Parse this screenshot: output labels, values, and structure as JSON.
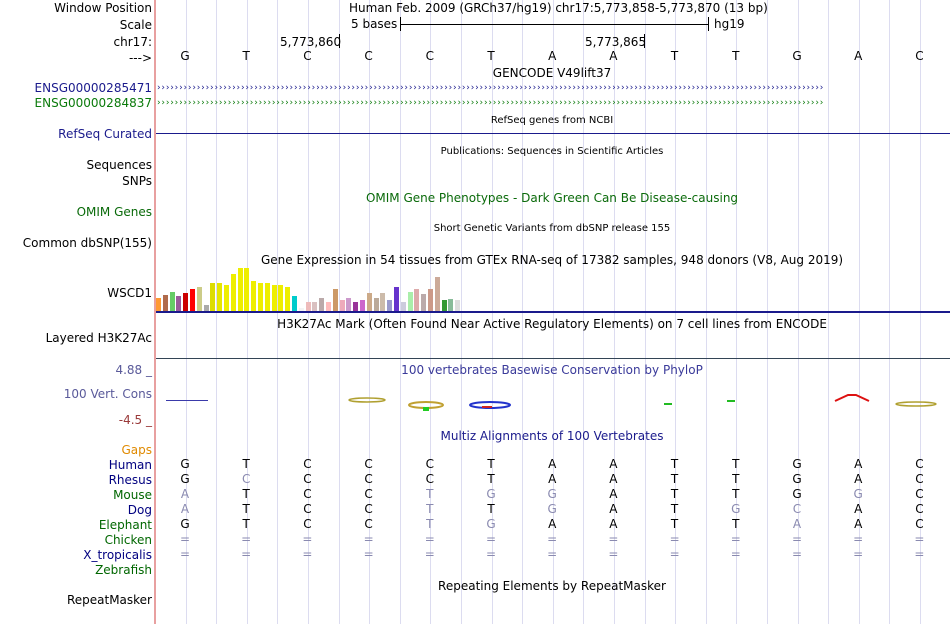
{
  "header": {
    "window_position_label": "Window Position",
    "window_position_value": "Human Feb. 2009 (GRCh37/hg19)   chr17:5,773,858-5,773,870 (13 bp)",
    "scale_label": "Scale",
    "scale_value": "5 bases",
    "scale_db": "hg19",
    "chrom_label": "chr17:",
    "pos1": "5,773,860",
    "pos2": "5,773,865",
    "strand_label": "--->"
  },
  "sequence": [
    "G",
    "T",
    "C",
    "C",
    "C",
    "T",
    "A",
    "A",
    "T",
    "T",
    "G",
    "A",
    "C"
  ],
  "tracks": {
    "gencode_title": "GENCODE V49lift37",
    "gene1": "ENSG00000285471",
    "gene2": "ENSG00000284837",
    "gene_arrows": "›››››››››››››››››››››››››››››››››››››››››››››››››››››››››››››››››››››››››››››››››››››››››››››››››››››››››››››››››››››››››››››››››››››››››››››››››››››››",
    "refseq_title": "RefSeq genes from NCBI",
    "refseq_label": "RefSeq Curated",
    "publications_title": "Publications: Sequences in Scientific Articles",
    "sequences_label": "Sequences",
    "snps_label": "SNPs",
    "omim_title": "OMIM Gene Phenotypes - Dark Green Can Be Disease-causing",
    "omim_label": "OMIM Genes",
    "dbsnp_title": "Short Genetic Variants from dbSNP release 155",
    "dbsnp_label": "Common dbSNP(155)",
    "gtex_title": "Gene Expression in 54 tissues from GTEx RNA-seq of 17382 samples, 948 donors (V8, Aug 2019)",
    "gtex_label": "WSCD1",
    "h3k27ac_title": "H3K27Ac Mark (Often Found Near Active Regulatory Elements) on 7 cell lines from ENCODE",
    "h3k27ac_label": "Layered H3K27Ac",
    "cons_max": "4.88 _",
    "cons_title": "100 vertebrates Basewise Conservation by PhyloP",
    "cons_label": "100 Vert. Cons",
    "cons_min": "-4.5 _",
    "multiz_title": "Multiz Alignments of 100 Vertebrates",
    "repeat_title": "Repeating Elements by RepeatMasker",
    "repeat_label": "RepeatMasker"
  },
  "gtex_values": [
    0.3,
    0.38,
    0.45,
    0.35,
    0.42,
    0.52,
    0.55,
    0.15,
    0.65,
    0.65,
    0.6,
    0.85,
    1.0,
    1.0,
    0.7,
    0.65,
    0.65,
    0.6,
    0.6,
    0.55,
    0.35,
    0.08,
    0.22,
    0.22,
    0.3,
    0.22,
    0.5,
    0.25,
    0.3,
    0.22,
    0.25,
    0.42,
    0.3,
    0.42,
    0.25,
    0.55,
    0.22,
    0.45,
    0.5,
    0.4,
    0.52,
    0.8,
    0.25,
    0.28,
    0.25
  ],
  "gtex_colors": [
    "#ff9933",
    "#b06b4c",
    "#66cc66",
    "#9a5a9a",
    "#cc0000",
    "#ff0000",
    "#cccc88",
    "#aaaaaa",
    "#dddd00",
    "#e6e600",
    "#eeee00",
    "#eeee00",
    "#eeee00",
    "#eeee00",
    "#eeee00",
    "#eeee00",
    "#eeee00",
    "#eeee00",
    "#eeee00",
    "#eeee00",
    "#00cccc",
    "#ffffff",
    "#eebbbb",
    "#d9c0c0",
    "#bbaaaa",
    "#ffbbbb",
    "#cc9966",
    "#eeaabb",
    "#cc99cc",
    "#993399",
    "#cc66cc",
    "#ccaa88",
    "#bbaa99",
    "#ccbbaa",
    "#9999cc",
    "#6633cc",
    "#ccccdd",
    "#aaeeaa",
    "#ddaaaa",
    "#bbaaaa",
    "#cc9988",
    "#ccaa99",
    "#339933",
    "#88bb99",
    "#dddddd"
  ],
  "multiz": [
    {
      "name": "Human",
      "color": "#000080",
      "bases": [
        "G",
        "T",
        "C",
        "C",
        "C",
        "T",
        "A",
        "A",
        "T",
        "T",
        "G",
        "A",
        "C"
      ],
      "dim": []
    },
    {
      "name": "Rhesus",
      "color": "#000080",
      "bases": [
        "G",
        "C",
        "C",
        "C",
        "C",
        "T",
        "A",
        "A",
        "T",
        "T",
        "G",
        "A",
        "C"
      ],
      "dim": [
        1
      ]
    },
    {
      "name": "Mouse",
      "color": "#006600",
      "bases": [
        "A",
        "T",
        "C",
        "C",
        "T",
        "G",
        "G",
        "A",
        "T",
        "T",
        "G",
        "G",
        "C"
      ],
      "dim": [
        0,
        4,
        5,
        6,
        11
      ]
    },
    {
      "name": "Dog",
      "color": "#000080",
      "bases": [
        "A",
        "T",
        "C",
        "C",
        "T",
        "T",
        "G",
        "A",
        "T",
        "G",
        "C",
        "A",
        "C"
      ],
      "dim": [
        0,
        4,
        6,
        9,
        10
      ]
    },
    {
      "name": "Elephant",
      "color": "#006600",
      "bases": [
        "G",
        "T",
        "C",
        "C",
        "T",
        "G",
        "A",
        "A",
        "T",
        "T",
        "A",
        "A",
        "C"
      ],
      "dim": [
        4,
        5,
        10
      ]
    },
    {
      "name": "Chicken",
      "color": "#006600",
      "bases": [
        "=",
        "=",
        "=",
        "=",
        "=",
        "=",
        "=",
        "=",
        "=",
        "=",
        "=",
        "=",
        "="
      ],
      "dim": [
        0,
        1,
        2,
        3,
        4,
        5,
        6,
        7,
        8,
        9,
        10,
        11,
        12
      ]
    },
    {
      "name": "X_tropicalis",
      "color": "#000080",
      "bases": [
        "=",
        "=",
        "=",
        "=",
        "=",
        "=",
        "=",
        "=",
        "=",
        "=",
        "=",
        "=",
        "="
      ],
      "dim": [
        0,
        1,
        2,
        3,
        4,
        5,
        6,
        7,
        8,
        9,
        10,
        11,
        12
      ]
    },
    {
      "name": "Zebrafish",
      "color": "#006600",
      "bases": [],
      "dim": []
    }
  ]
}
